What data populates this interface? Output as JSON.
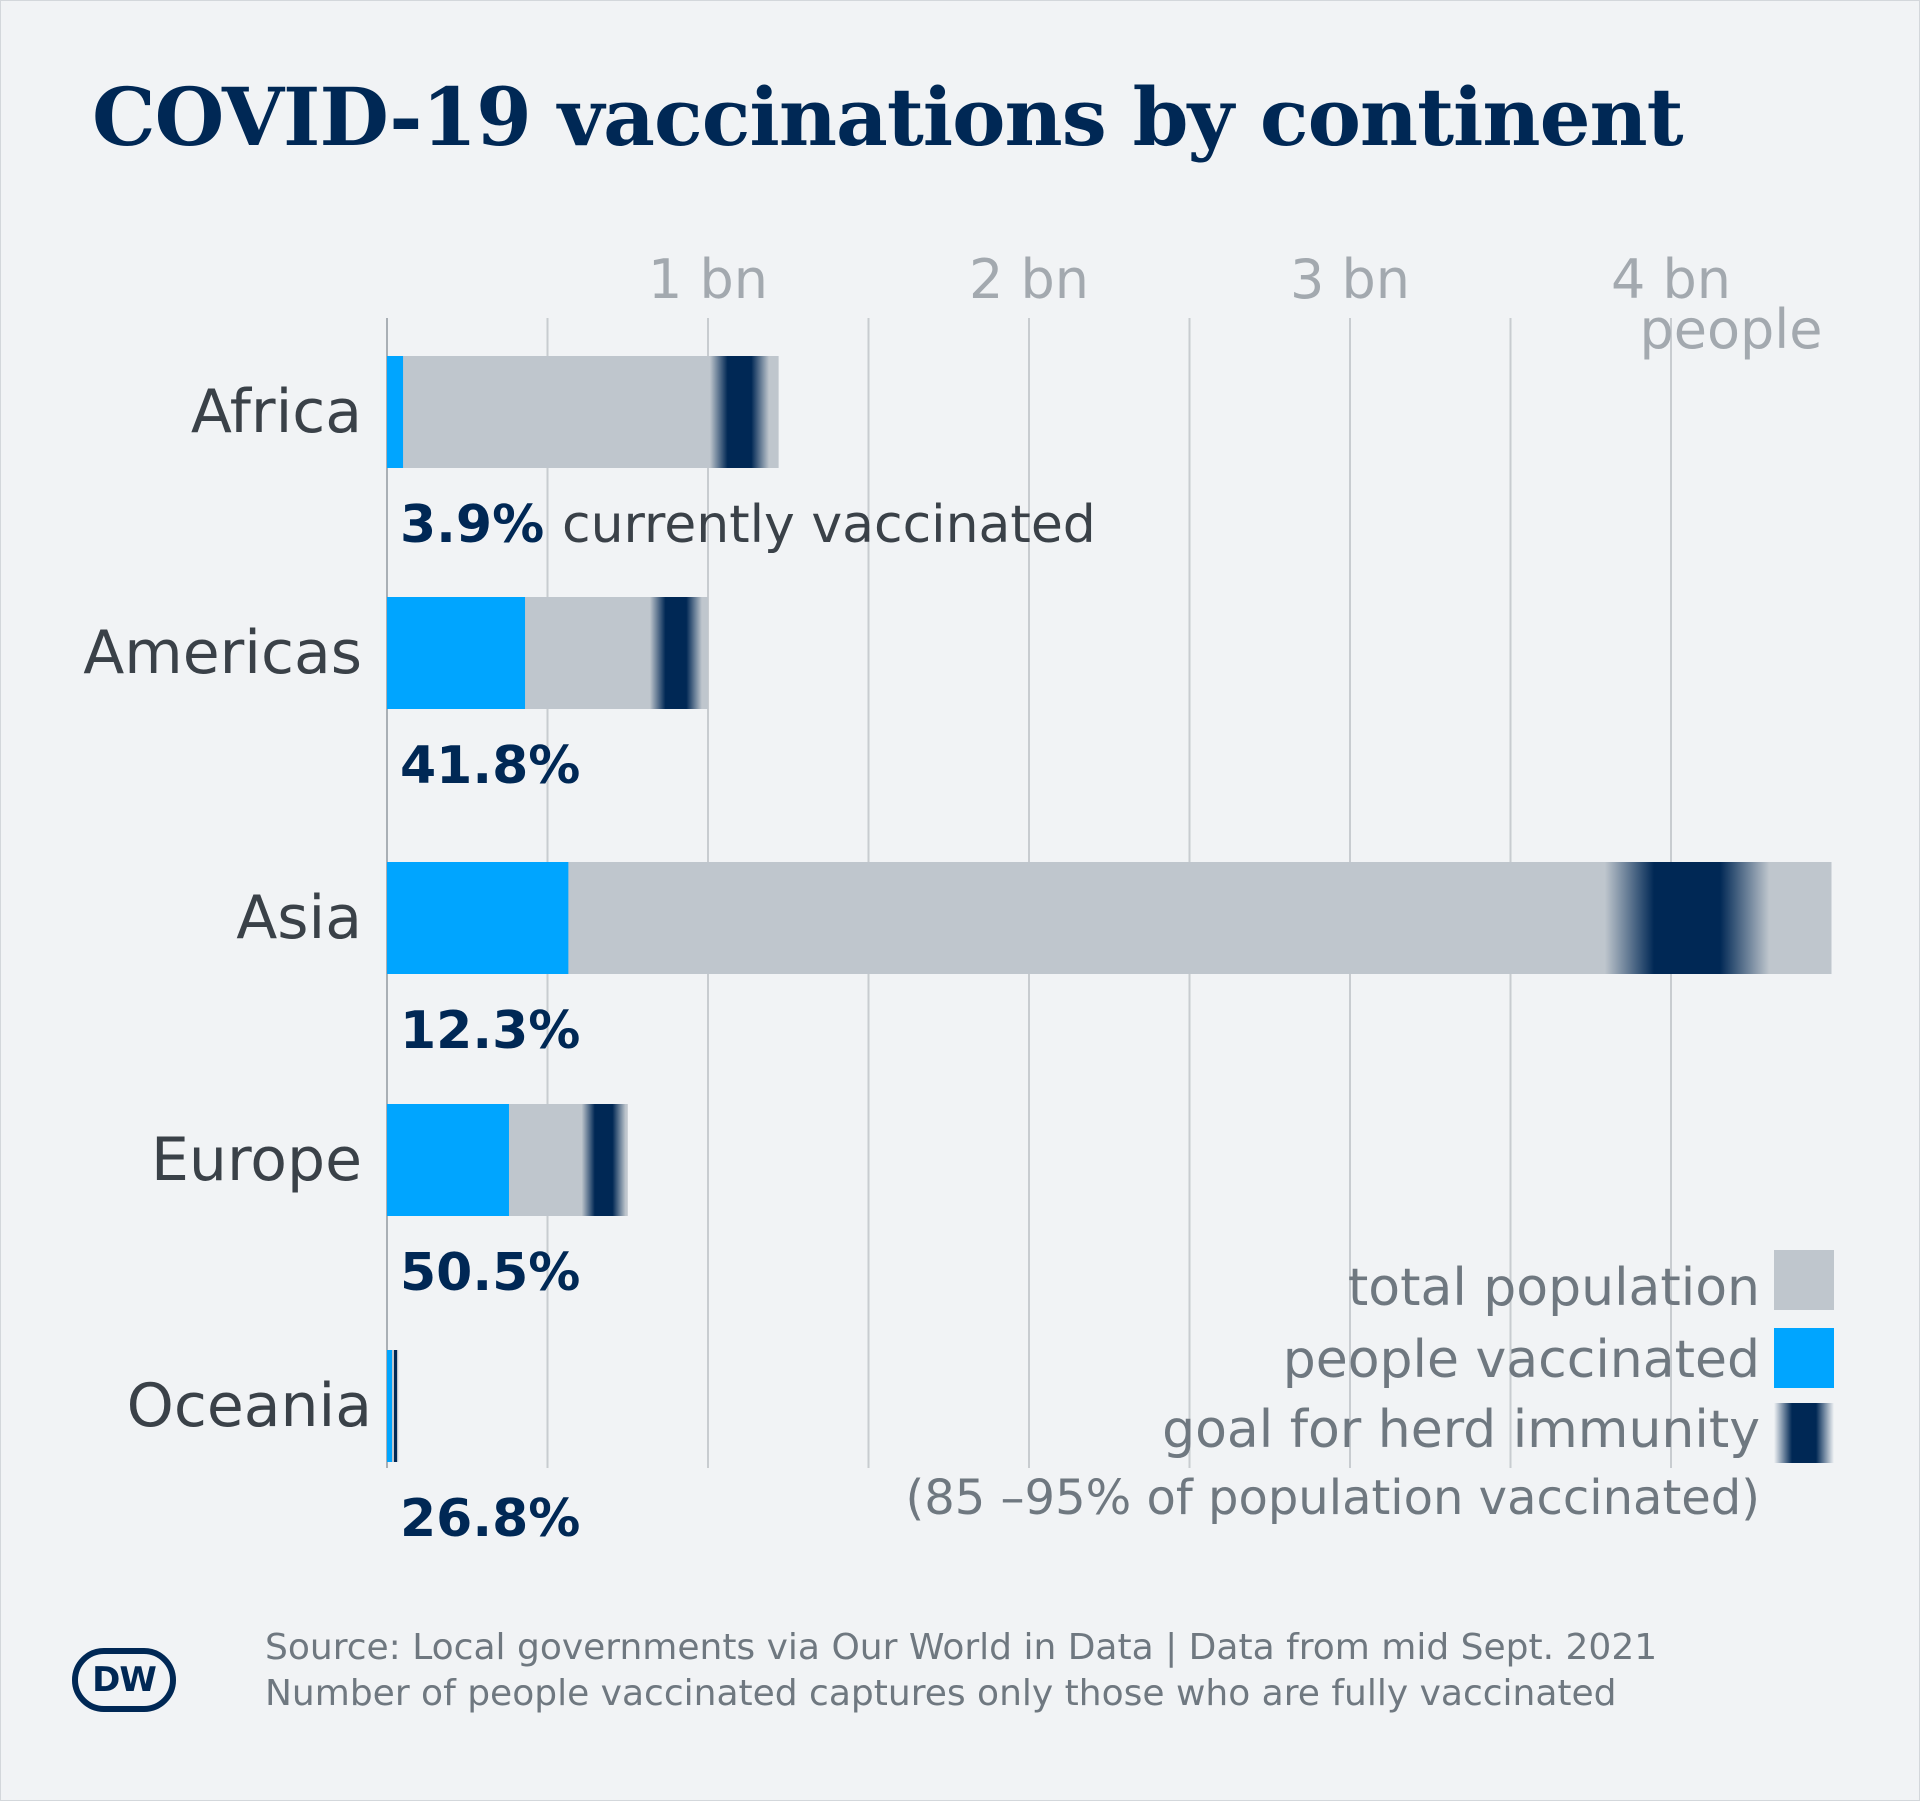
{
  "title": "COVID-19 vaccinations by continent",
  "colors": {
    "background": "#f1f3f5",
    "total_population": "#bfc6cd",
    "people_vaccinated": "#00a5ff",
    "herd_immunity_goal": "#002855",
    "gridline": "#c8ccd0",
    "text_dark": "#002855",
    "text_muted": "#6f7880",
    "category_text": "#3a4148"
  },
  "legend": {
    "total_population": "total population",
    "people_vaccinated": "people vaccinated",
    "herd_immunity": "goal for herd immunity",
    "herd_immunity_note": "(85 –95% of population vaccinated)",
    "position": "bottom-right"
  },
  "footer": {
    "source": "Source: Local governments via Our World in Data | Data from mid Sept. 2021",
    "note": "Number of people vaccinated captures only those who are fully vaccinated"
  },
  "logo": {
    "text": "DW"
  },
  "chart_data": {
    "type": "bar",
    "orientation": "horizontal",
    "title": "COVID-19 vaccinations by continent",
    "x_unit_label": "people",
    "x_ticks": [
      {
        "value": 1.0,
        "label": "1 bn"
      },
      {
        "value": 2.0,
        "label": "2 bn"
      },
      {
        "value": 3.0,
        "label": "3 bn"
      },
      {
        "value": 4.0,
        "label": "4 bn"
      }
    ],
    "xlim": [
      0,
      4.5
    ],
    "grid_step": 0.5,
    "grid": true,
    "first_annotation_suffix": "currently vaccinated",
    "categories": [
      "Africa",
      "Americas",
      "Asia",
      "Europe",
      "Oceania"
    ],
    "series": [
      {
        "name": "total population",
        "values": [
          1.22,
          1.0,
          4.5,
          0.75,
          0.035
        ]
      },
      {
        "name": "people vaccinated",
        "values": [
          0.05,
          0.43,
          0.565,
          0.38,
          0.01
        ]
      }
    ],
    "herd_immunity_range": [
      0.85,
      0.95
    ],
    "vaccinated_percent_labels": [
      "3.9%",
      "41.8%",
      "12.3%",
      "50.5%",
      "26.8%"
    ]
  }
}
